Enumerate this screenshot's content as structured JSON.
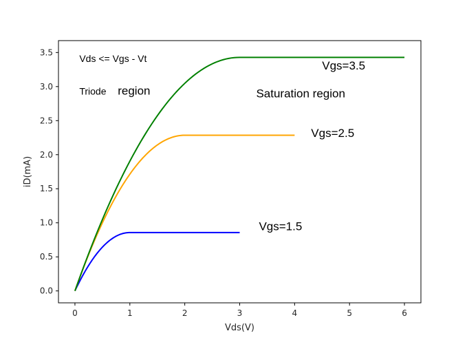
{
  "chart_data": {
    "type": "line",
    "title": "",
    "xlabel": "Vds(V)",
    "ylabel": "iD(mA)",
    "xlim": [
      -0.3,
      6.3
    ],
    "ylim": [
      -0.175,
      3.675
    ],
    "xticks": [
      0,
      1,
      2,
      3,
      4,
      5,
      6
    ],
    "xtick_labels": [
      "0",
      "1",
      "2",
      "3",
      "4",
      "5",
      "6"
    ],
    "yticks": [
      0.0,
      0.5,
      1.0,
      1.5,
      2.0,
      2.5,
      3.0,
      3.5
    ],
    "ytick_labels": [
      "0.0",
      "0.5",
      "1.0",
      "1.5",
      "2.0",
      "2.5",
      "3.0",
      "3.5"
    ],
    "grid": false,
    "series": [
      {
        "name": "Vgs=1.5",
        "color": "#0000ff",
        "vt": 0.5,
        "k": 0.857,
        "x_end": 3,
        "label_text": "Vgs=1.5",
        "label_at": [
          3.35,
          0.89
        ]
      },
      {
        "name": "Vgs=2.5",
        "color": "#ffa500",
        "vt": 0.5,
        "k": 0.5714,
        "x_end": 4,
        "label_text": "Vgs=2.5",
        "label_at": [
          4.3,
          2.26
        ]
      },
      {
        "name": "Vgs=3.5",
        "color": "#008000",
        "vt": 0.5,
        "k": 0.381,
        "x_end": 6,
        "label_text": "Vgs=3.5",
        "label_at": [
          4.5,
          3.25
        ]
      }
    ],
    "annotations": [
      {
        "text": "Vds <= Vgs - Vt",
        "at": [
          0.08,
          3.36
        ],
        "size": 14
      },
      {
        "text": "Triode",
        "at": [
          0.08,
          2.88
        ],
        "size": 14
      },
      {
        "text": "region",
        "at": [
          0.78,
          2.88
        ],
        "size": 17
      },
      {
        "text": "Saturation region",
        "at": [
          3.3,
          2.84
        ],
        "size": 17
      }
    ]
  }
}
